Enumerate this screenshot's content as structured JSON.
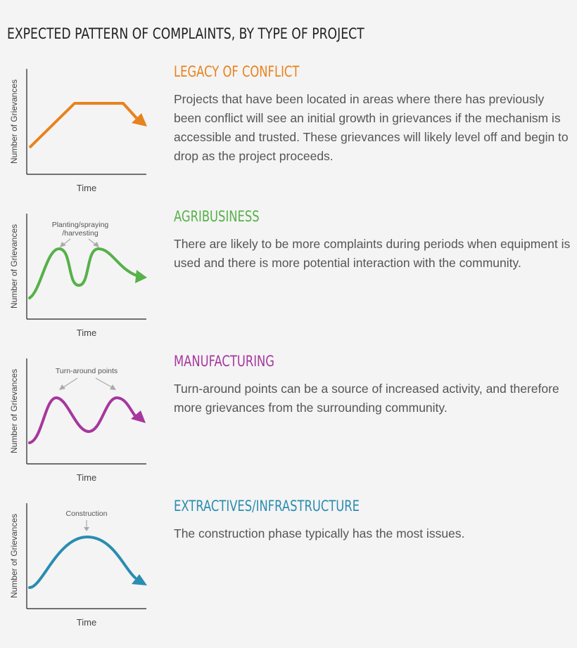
{
  "title": "EXPECTED PATTERN OF COMPLAINTS, BY TYPE OF PROJECT",
  "sections": [
    {
      "heading": "LEGACY OF CONFLICT",
      "color": "#e8821c",
      "description": "Projects that have been located in areas where there has previously been conflict will see an initial growth in grievances if the mechanism is accessible and trusted. These grievances will likely level off and begin to drop as the project proceeds.",
      "y_label": "Number of Grievances",
      "x_label": "Time",
      "annotation": ""
    },
    {
      "heading": "AGRIBUSINESS",
      "color": "#57b04a",
      "description": "There are likely to be more complaints during periods when equipment is used and there is more potential interaction with the community.",
      "y_label": "Number of Grievances",
      "x_label": "Time",
      "annotation": "Planting/spraying",
      "annotation_line2": "/harvesting"
    },
    {
      "heading": "MANUFACTURING",
      "color": "#a6379e",
      "description": "Turn-around points can be a source of increased activity, and therefore more grievances from the surrounding community.",
      "y_label": "Number of Grievances",
      "x_label": "Time",
      "annotation": "Turn-around points"
    },
    {
      "heading": "EXTRACTIVES/INFRASTRUCTURE",
      "color": "#2a8cb0",
      "description": "The construction phase typically has the most issues.",
      "y_label": "Number of Grievances",
      "x_label": "Time",
      "annotation": "Construction"
    }
  ]
}
